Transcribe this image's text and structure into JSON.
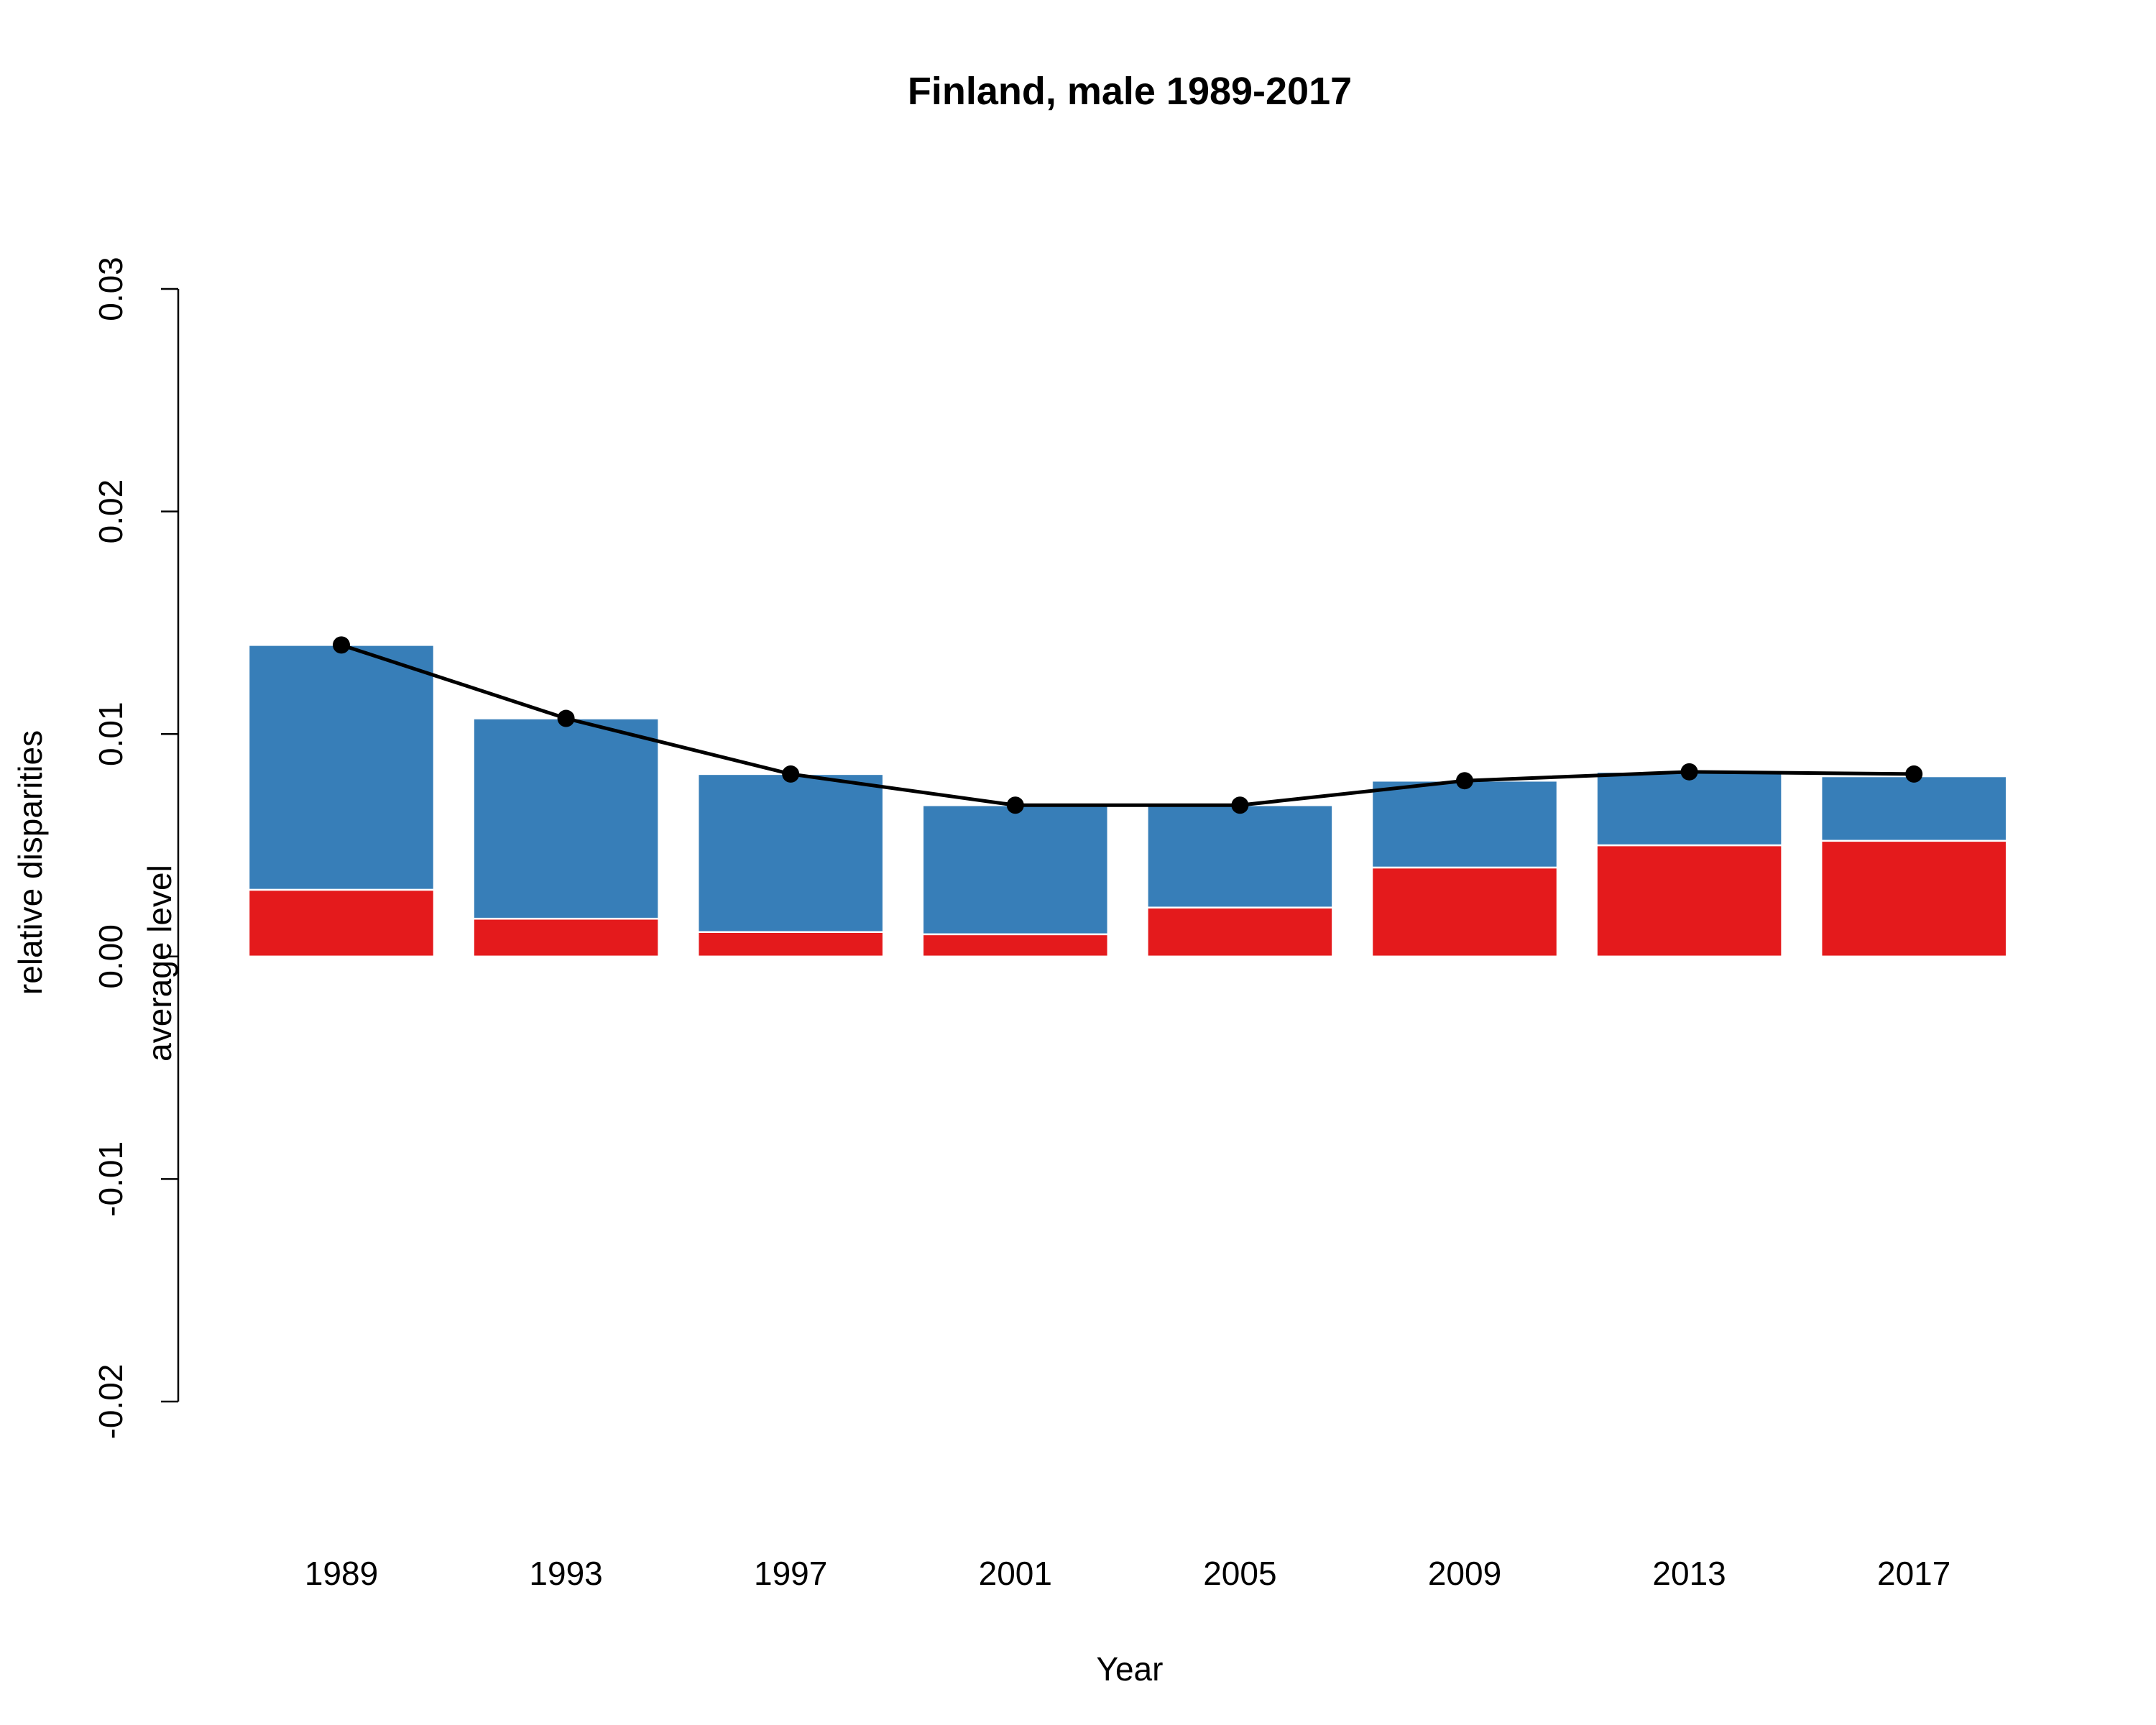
{
  "chart_data": {
    "type": "bar",
    "title": "Finland, male 1989-2017",
    "xlabel": "Year",
    "ylabel": "relative disparities",
    "ylabel2": "average level",
    "ylim": [
      -0.02,
      0.03
    ],
    "yticks": [
      "-0.02",
      "-0.01",
      "0.00",
      "0.01",
      "0.02",
      "0.03"
    ],
    "ytick_values": [
      -0.02,
      -0.01,
      0.0,
      0.01,
      0.02,
      0.03
    ],
    "categories": [
      "1989",
      "1993",
      "1997",
      "2001",
      "2005",
      "2009",
      "2013",
      "2017"
    ],
    "stacked": true,
    "grid": false,
    "series": [
      {
        "color": "#e41a1c",
        "values": [
          0.003,
          0.0017,
          0.0011,
          0.001,
          0.0022,
          0.004,
          0.005,
          0.0052
        ]
      },
      {
        "color": "#377eb8",
        "values": [
          0.011,
          0.009,
          0.0071,
          0.0058,
          0.0046,
          0.0039,
          0.0033,
          0.0029
        ]
      }
    ],
    "line": {
      "color": "#000000",
      "values": [
        0.014,
        0.0107,
        0.0082,
        0.0068,
        0.0068,
        0.0079,
        0.0083,
        0.0082
      ]
    }
  }
}
